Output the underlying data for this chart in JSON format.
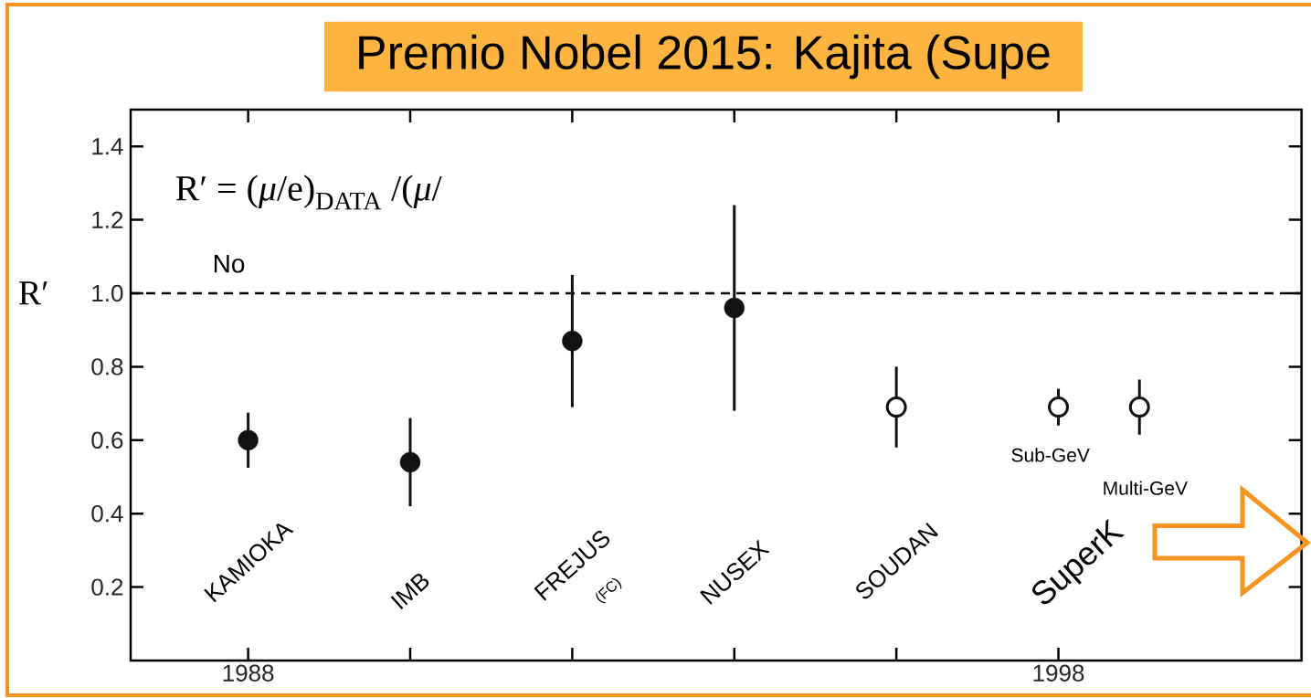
{
  "chart_data": {
    "type": "scatter",
    "title": "Premio Nobel 2015: Kajita (Supe",
    "ylabel": "R′",
    "xlim": [
      1986.55,
      2001
    ],
    "ylim": [
      0,
      1.5
    ],
    "xticks": [
      1988,
      {
        "value": 1990,
        "label": null
      },
      {
        "value": 1992,
        "label": null
      },
      {
        "value": 1994,
        "label": null
      },
      {
        "value": 1996,
        "label": null
      },
      1998
    ],
    "yticks": [
      0.2,
      0.4,
      0.6,
      0.8,
      {
        "value": 1,
        "label": "1.0"
      },
      1.2,
      1.4
    ],
    "marker": "circle",
    "series": [
      {
        "color": "#111111",
        "x": [
          1988,
          1990,
          1992,
          1994
        ],
        "values": [
          0.6,
          0.54,
          0.87,
          0.96
        ],
        "errors": [
          0.075,
          0.12,
          0.18,
          0.28
        ]
      },
      {
        "color": "#111111",
        "x": [
          1996,
          1998,
          1999
        ],
        "values": [
          0.69,
          0.69,
          0.69
        ],
        "errors": [
          0.11,
          0.05,
          0.075
        ]
      }
    ],
    "ref_lines": [
      {
        "axis": "y",
        "value": 1,
        "line_style": "dashed"
      }
    ],
    "annotations": [
      "R′ = (*μ*/e)$_{DATA}$ /(*μ*/",
      "No",
      "KAMIOKA",
      "IMB",
      "FREJUS",
      "(FC)",
      "NUSEX",
      "SOUDAN",
      "SuperK",
      "Sub-GeV",
      "Multi-GeV"
    ]
  }
}
